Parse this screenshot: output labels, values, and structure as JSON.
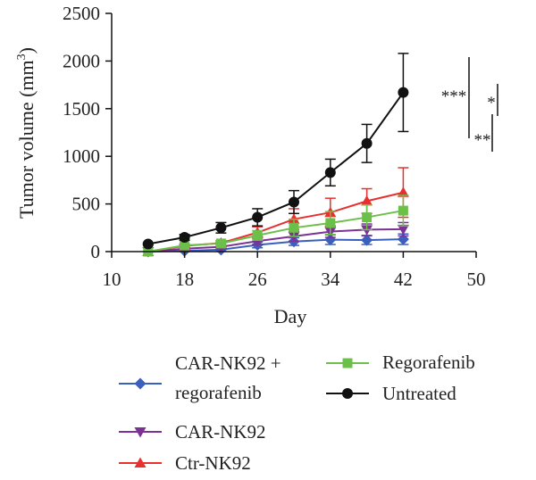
{
  "chart_data": {
    "type": "line",
    "ylabel": "Tumor volume (mm",
    "ylabel_sup": "3",
    "ylabel_close": ")",
    "xlabel": "Day",
    "xlim": [
      10,
      50
    ],
    "ylim": [
      0,
      2500
    ],
    "x_ticks": [
      "10",
      "18",
      "26",
      "34",
      "42",
      "50"
    ],
    "y_ticks": [
      "0",
      "500",
      "1000",
      "1500",
      "2000",
      "2500"
    ],
    "grid": false,
    "legend_position": "bottom",
    "series": [
      {
        "name": "CAR-NK92 + regorafenib",
        "name_lines": [
          "CAR-NK92 +",
          "regorafenib"
        ],
        "color": "#3a5fbf",
        "marker": "diamond",
        "x": [
          14,
          18,
          22,
          26,
          30,
          34,
          38,
          42
        ],
        "y": [
          0,
          8,
          20,
          70,
          105,
          125,
          120,
          130
        ],
        "err": [
          0,
          10,
          18,
          30,
          40,
          50,
          45,
          55
        ]
      },
      {
        "name": "CAR-NK92",
        "name_lines": [
          "CAR-NK92"
        ],
        "color": "#7b3294",
        "marker": "triangle-down",
        "x": [
          14,
          18,
          22,
          26,
          30,
          34,
          38,
          42
        ],
        "y": [
          0,
          30,
          50,
          110,
          160,
          210,
          230,
          235
        ],
        "err": [
          0,
          15,
          20,
          35,
          50,
          60,
          60,
          70
        ]
      },
      {
        "name": "Ctr-NK92",
        "name_lines": [
          "Ctr-NK92"
        ],
        "color": "#e8302f",
        "marker": "triangle-up",
        "x": [
          14,
          18,
          22,
          26,
          30,
          34,
          38,
          42
        ],
        "y": [
          0,
          60,
          90,
          200,
          340,
          410,
          530,
          620
        ],
        "err": [
          0,
          15,
          25,
          60,
          110,
          150,
          130,
          260
        ]
      },
      {
        "name": "Regorafenib",
        "name_lines": [
          "Regorafenib"
        ],
        "color": "#6cc04a",
        "marker": "square",
        "x": [
          14,
          18,
          22,
          26,
          30,
          34,
          38,
          42
        ],
        "y": [
          0,
          65,
          85,
          170,
          250,
          300,
          360,
          430
        ],
        "err": [
          0,
          15,
          20,
          50,
          90,
          120,
          130,
          160
        ]
      },
      {
        "name": "Untreated",
        "name_lines": [
          "Untreated"
        ],
        "color": "#111111",
        "marker": "circle",
        "x": [
          14,
          18,
          22,
          26,
          30,
          34,
          38,
          42
        ],
        "y": [
          80,
          150,
          250,
          360,
          520,
          830,
          1135,
          1670
        ],
        "err": [
          10,
          30,
          55,
          90,
          120,
          140,
          200,
          410
        ]
      }
    ],
    "significance": [
      "***",
      "*",
      "**"
    ]
  }
}
